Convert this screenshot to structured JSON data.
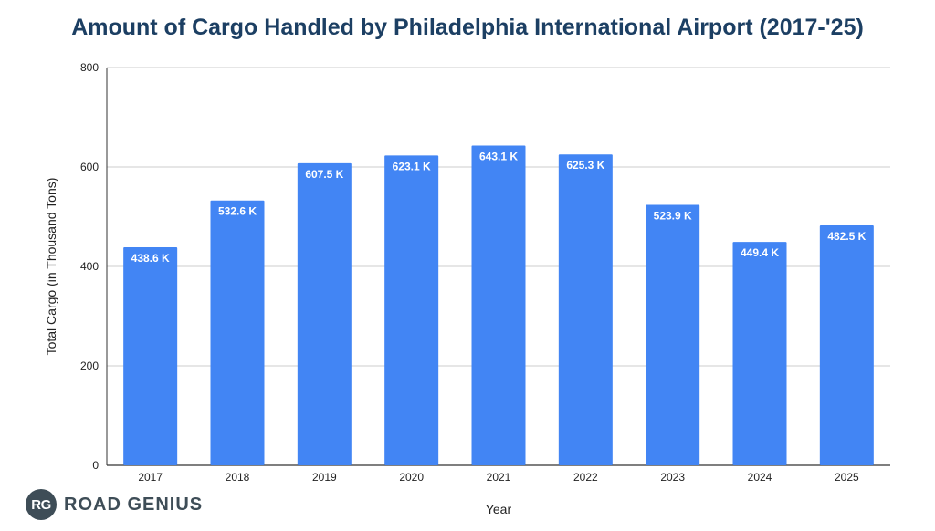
{
  "chart_data": {
    "type": "bar",
    "title": "Amount of Cargo Handled by Philadelphia International Airport (2017-'25)",
    "xlabel": "Year",
    "ylabel": "Total Cargo (in Thousand Tons)",
    "ylim": [
      0,
      800
    ],
    "yticks": [
      0,
      200,
      400,
      600,
      800
    ],
    "grid": true,
    "categories": [
      "2017",
      "2018",
      "2019",
      "2020",
      "2021",
      "2022",
      "2023",
      "2024",
      "2025"
    ],
    "values": [
      438.6,
      532.6,
      607.5,
      623.1,
      643.1,
      625.3,
      523.9,
      449.4,
      482.5
    ],
    "data_labels": [
      "438.6 K",
      "532.6 K",
      "607.5 K",
      "623.1 K",
      "643.1 K",
      "625.3 K",
      "523.9 K",
      "449.4 K",
      "482.5 K"
    ],
    "bar_color": "#4285f4"
  },
  "logo": {
    "badge": "RG",
    "text": "ROAD GENIUS"
  }
}
